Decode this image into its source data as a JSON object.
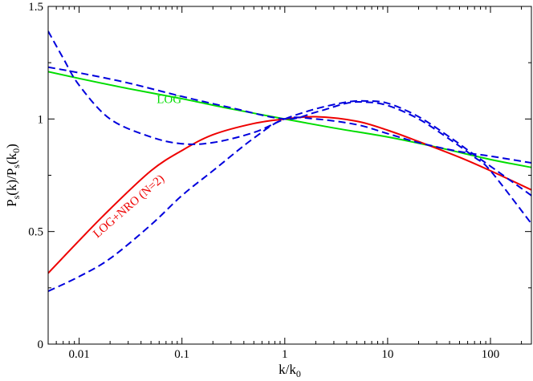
{
  "chart_data": {
    "type": "line",
    "title": "",
    "xlabel": "k/k",
    "xlabel_sub": "0",
    "ylabel_parts": [
      "P",
      "s",
      "(k)/P",
      "s",
      "(k",
      "0",
      ")"
    ],
    "x_scale": "log",
    "xlim": [
      0.005,
      250
    ],
    "ylim": [
      0,
      1.5
    ],
    "grid": false,
    "legend": "none",
    "x_ticks": [
      0.01,
      0.1,
      1,
      10,
      100
    ],
    "x_tick_labels": [
      "0.01",
      "0.1",
      "1",
      "10",
      "100"
    ],
    "y_ticks": [
      0,
      0.5,
      1,
      1.5
    ],
    "y_tick_labels": [
      "0",
      "0.5",
      "1",
      "1.5"
    ],
    "series": [
      {
        "color": "#00dd00",
        "style": "solid",
        "x": [
          0.005,
          0.01,
          0.03,
          0.1,
          0.3,
          1,
          3,
          10,
          30,
          100,
          250
        ],
        "y": [
          1.21,
          1.18,
          1.135,
          1.09,
          1.045,
          1.0,
          0.96,
          0.92,
          0.875,
          0.82,
          0.785
        ]
      },
      {
        "color": "#ee0000",
        "style": "solid",
        "x": [
          0.005,
          0.01,
          0.02,
          0.05,
          0.1,
          0.2,
          0.5,
          1,
          2,
          5,
          10,
          20,
          50,
          100,
          250
        ],
        "y": [
          0.315,
          0.46,
          0.6,
          0.77,
          0.86,
          0.93,
          0.98,
          1.0,
          1.01,
          0.99,
          0.95,
          0.9,
          0.83,
          0.77,
          0.685
        ]
      },
      {
        "color": "#0000dd",
        "style": "dashed",
        "x": [
          0.005,
          0.01,
          0.03,
          0.1,
          0.3,
          1,
          2,
          4,
          6,
          10,
          20,
          40,
          70,
          100,
          250
        ],
        "y": [
          1.23,
          1.205,
          1.16,
          1.1,
          1.05,
          1.0,
          1.03,
          1.07,
          1.075,
          1.06,
          1.0,
          0.91,
          0.83,
          0.77,
          0.535
        ]
      },
      {
        "color": "#0000dd",
        "style": "dashed",
        "x": [
          0.005,
          0.007,
          0.01,
          0.02,
          0.05,
          0.1,
          0.2,
          0.5,
          1,
          2,
          4,
          6,
          10,
          20,
          40,
          70,
          100,
          250
        ],
        "y": [
          1.39,
          1.27,
          1.15,
          1.0,
          0.92,
          0.89,
          0.895,
          0.94,
          1.0,
          1.045,
          1.075,
          1.08,
          1.07,
          1.01,
          0.92,
          0.84,
          0.79,
          0.66
        ]
      },
      {
        "color": "#0000dd",
        "style": "dashed",
        "x": [
          0.005,
          0.01,
          0.02,
          0.05,
          0.1,
          0.2,
          0.5,
          1,
          2,
          5,
          10,
          20,
          50,
          100,
          250
        ],
        "y": [
          0.235,
          0.3,
          0.38,
          0.53,
          0.66,
          0.77,
          0.915,
          1.0,
          1.0,
          0.975,
          0.935,
          0.895,
          0.855,
          0.835,
          0.805
        ]
      }
    ],
    "annotations": [
      {
        "text": "LOG",
        "color": "#00dd00",
        "x": 0.075,
        "y": 1.07,
        "rotate": 0
      },
      {
        "text": "LOG+NRO (N=2)",
        "color": "#ee0000",
        "x": 0.032,
        "y": 0.6,
        "rotate": -41
      }
    ]
  }
}
